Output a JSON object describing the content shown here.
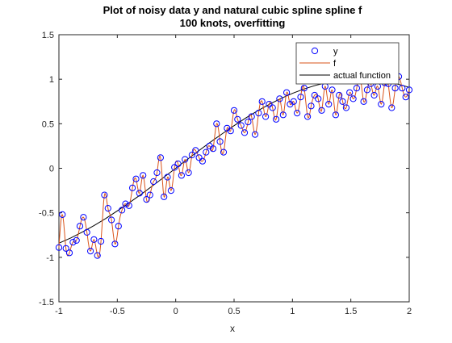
{
  "chart_data": {
    "type": "line",
    "title": "Plot of noisy data y and natural cubic spline spline f",
    "subtitle": "100 knots, overfitting",
    "xlabel": "x",
    "ylabel": "",
    "xlim": [
      -1,
      2
    ],
    "ylim": [
      -1.5,
      1.5
    ],
    "xticks": [
      "-1",
      "-0.5",
      "0",
      "0.5",
      "1",
      "1.5",
      "2"
    ],
    "yticks": [
      "-1.5",
      "-1",
      "-0.5",
      "0",
      "0.5",
      "1",
      "1.5"
    ],
    "grid": false,
    "legend_position": "top-right",
    "actual_function": "sin(x)",
    "colors": {
      "y": "#0000ff",
      "f": "#d95319",
      "actual": "#000000",
      "axes": "#262626"
    },
    "legend": [
      {
        "label": "y",
        "marker": "circle"
      },
      {
        "label": "f",
        "marker": "line"
      },
      {
        "label": "actual function",
        "marker": "line"
      }
    ],
    "series": [
      {
        "name": "y",
        "style": "markers",
        "x": [
          -1.0,
          -0.97,
          -0.94,
          -0.91,
          -0.88,
          -0.85,
          -0.82,
          -0.79,
          -0.76,
          -0.73,
          -0.7,
          -0.67,
          -0.64,
          -0.61,
          -0.58,
          -0.55,
          -0.52,
          -0.49,
          -0.46,
          -0.43,
          -0.4,
          -0.37,
          -0.34,
          -0.31,
          -0.28,
          -0.25,
          -0.22,
          -0.19,
          -0.16,
          -0.13,
          -0.1,
          -0.07,
          -0.04,
          -0.01,
          0.02,
          0.05,
          0.08,
          0.11,
          0.14,
          0.17,
          0.2,
          0.23,
          0.26,
          0.29,
          0.32,
          0.35,
          0.38,
          0.41,
          0.44,
          0.47,
          0.5,
          0.53,
          0.56,
          0.59,
          0.62,
          0.65,
          0.68,
          0.71,
          0.74,
          0.77,
          0.8,
          0.83,
          0.86,
          0.89,
          0.92,
          0.95,
          0.98,
          1.01,
          1.04,
          1.07,
          1.1,
          1.13,
          1.16,
          1.19,
          1.22,
          1.25,
          1.28,
          1.31,
          1.34,
          1.37,
          1.4,
          1.43,
          1.46,
          1.49,
          1.52,
          1.55,
          1.58,
          1.61,
          1.64,
          1.67,
          1.7,
          1.73,
          1.76,
          1.79,
          1.82,
          1.85,
          1.88,
          1.91,
          1.94,
          1.97,
          2.0
        ],
        "y": [
          -0.89,
          -0.52,
          -0.9,
          -0.95,
          -0.83,
          -0.81,
          -0.65,
          -0.55,
          -0.72,
          -0.93,
          -0.8,
          -0.98,
          -0.82,
          -0.3,
          -0.45,
          -0.58,
          -0.85,
          -0.65,
          -0.47,
          -0.4,
          -0.42,
          -0.22,
          -0.12,
          -0.28,
          -0.08,
          -0.35,
          -0.3,
          -0.15,
          -0.05,
          0.12,
          -0.32,
          -0.1,
          -0.25,
          0.01,
          0.05,
          -0.08,
          0.1,
          -0.05,
          0.15,
          0.2,
          0.12,
          0.08,
          0.18,
          0.25,
          0.22,
          0.5,
          0.3,
          0.18,
          0.45,
          0.42,
          0.65,
          0.55,
          0.48,
          0.4,
          0.52,
          0.58,
          0.38,
          0.62,
          0.75,
          0.58,
          0.72,
          0.68,
          0.55,
          0.78,
          0.6,
          0.85,
          0.72,
          0.75,
          0.62,
          0.8,
          0.9,
          0.58,
          0.7,
          0.82,
          0.78,
          0.65,
          0.92,
          0.72,
          0.88,
          0.6,
          0.82,
          0.75,
          0.68,
          0.85,
          0.78,
          0.9,
          1.02,
          0.75,
          0.88,
          0.95,
          0.82,
          0.92,
          0.72,
          0.96,
          0.95,
          0.68,
          0.9,
          1.03,
          0.9,
          0.8,
          0.88
        ]
      },
      {
        "name": "f",
        "style": "line",
        "interpolates": "y"
      },
      {
        "name": "actual function",
        "style": "line",
        "x": [
          -1.0,
          -0.9,
          -0.8,
          -0.7,
          -0.6,
          -0.5,
          -0.4,
          -0.3,
          -0.2,
          -0.1,
          0.0,
          0.1,
          0.2,
          0.3,
          0.4,
          0.5,
          0.6,
          0.7,
          0.8,
          0.9,
          1.0,
          1.1,
          1.2,
          1.3,
          1.4,
          1.5,
          1.6,
          1.7,
          1.8,
          1.9,
          2.0
        ],
        "y": [
          -0.841,
          -0.783,
          -0.717,
          -0.644,
          -0.565,
          -0.479,
          -0.389,
          -0.296,
          -0.199,
          -0.1,
          0.0,
          0.1,
          0.199,
          0.296,
          0.389,
          0.479,
          0.565,
          0.644,
          0.717,
          0.783,
          0.841,
          0.891,
          0.932,
          0.964,
          0.985,
          0.997,
          1.0,
          0.992,
          0.974,
          0.946,
          0.909
        ]
      }
    ]
  }
}
